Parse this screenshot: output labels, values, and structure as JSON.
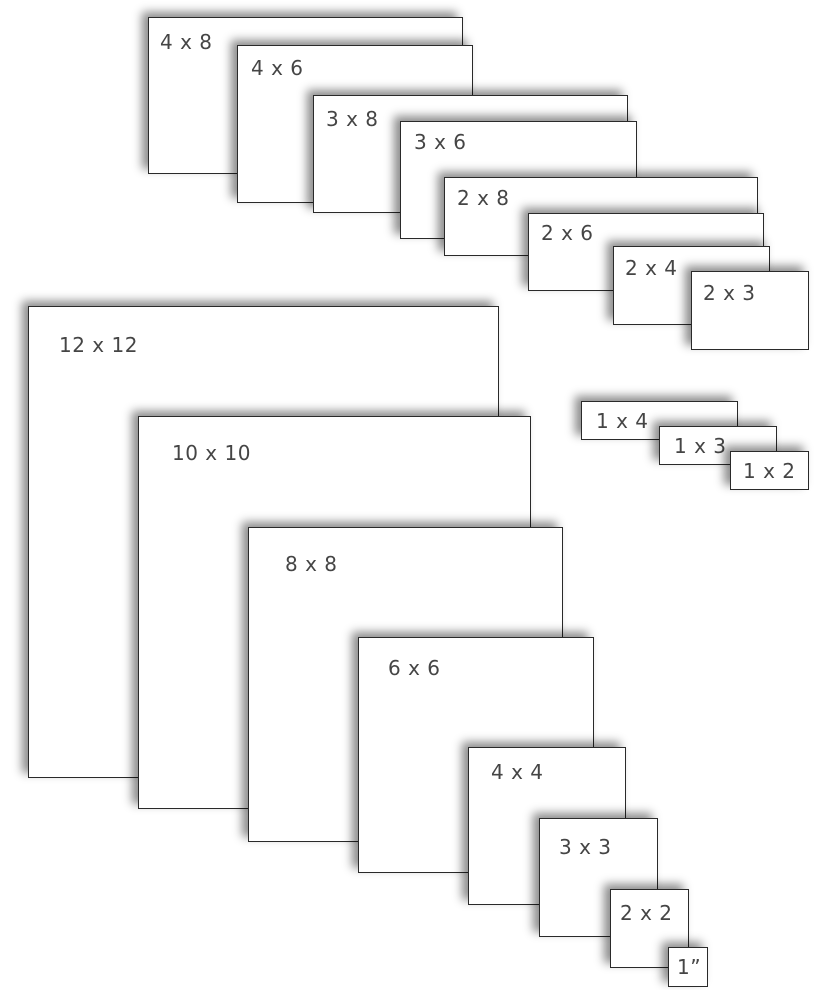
{
  "sizes": {
    "s4x8": "4 x 8",
    "s4x6": "4 x 6",
    "s3x8": "3 x 8",
    "s3x6": "3 x 6",
    "s2x8": "2 x 8",
    "s2x6": "2 x 6",
    "s2x4": "2 x 4",
    "s2x3": "2 x 3",
    "s1x4": "1 x 4",
    "s1x3": "1 x 3",
    "s1x2": "1 x 2",
    "s12x12": "12 x 12",
    "s10x10": "10 x 10",
    "s8x8": "8 x 8",
    "s6x6": "6 x 6",
    "s4x4": "4 x 4",
    "s3x3": "3 x 3",
    "s2x2": "2 x 2",
    "s1in": "1”"
  }
}
